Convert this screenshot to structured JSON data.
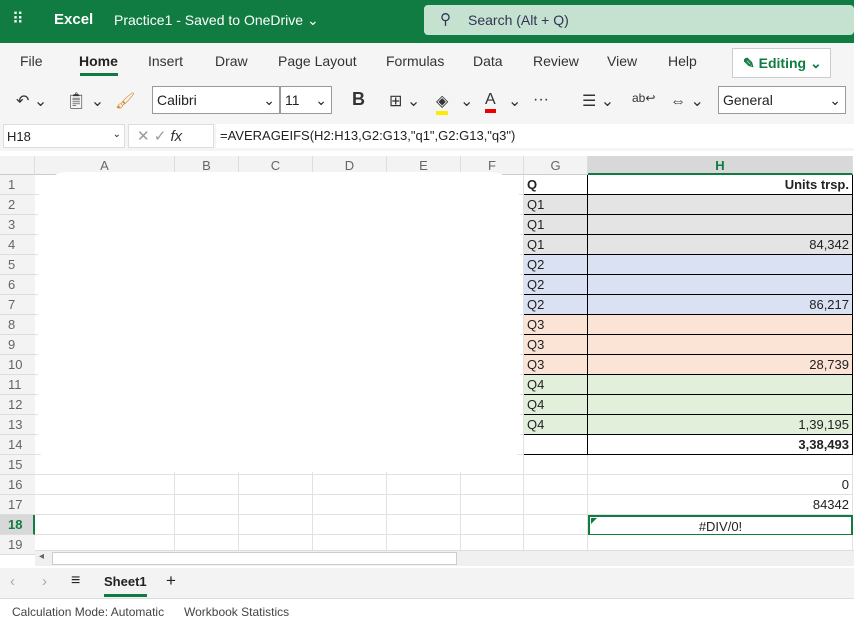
{
  "titlebar": {
    "app": "Excel",
    "document": "Practice1  -  Saved to OneDrive",
    "search_placeholder": "Search (Alt + Q)"
  },
  "menu": {
    "items": [
      "File",
      "Home",
      "Insert",
      "Draw",
      "Page Layout",
      "Formulas",
      "Data",
      "Review",
      "View",
      "Help"
    ],
    "active": "Home",
    "editing": "Editing"
  },
  "toolbar": {
    "font": "Calibri",
    "size": "11",
    "bold": "B",
    "number_format": "General",
    "more": "···"
  },
  "formula_bar": {
    "name_box": "H18",
    "fx": "fx",
    "formula": "=AVERAGEIFS(H2:H13,G2:G13,\"q1\",G2:G13,\"q3\")"
  },
  "columns": [
    "A",
    "B",
    "C",
    "D",
    "E",
    "F",
    "G",
    "H"
  ],
  "selected_column": "H",
  "selected_row": 18,
  "rows": [
    {
      "n": 1,
      "g": "Q",
      "h": "Units trsp.",
      "bold": true
    },
    {
      "n": 2,
      "g": "Q1",
      "h": "",
      "fill": "#e4e4e4"
    },
    {
      "n": 3,
      "g": "Q1",
      "h": "",
      "fill": "#e4e4e4"
    },
    {
      "n": 4,
      "g": "Q1",
      "h": "84,342",
      "fill": "#e4e4e4"
    },
    {
      "n": 5,
      "g": "Q2",
      "h": "",
      "fill": "#dae1f2"
    },
    {
      "n": 6,
      "g": "Q2",
      "h": "",
      "fill": "#dae1f2"
    },
    {
      "n": 7,
      "g": "Q2",
      "h": "86,217",
      "fill": "#dae1f2"
    },
    {
      "n": 8,
      "g": "Q3",
      "h": "",
      "fill": "#fbe3d6"
    },
    {
      "n": 9,
      "g": "Q3",
      "h": "",
      "fill": "#fbe3d6"
    },
    {
      "n": 10,
      "g": "Q3",
      "h": "28,739",
      "fill": "#fbe3d6"
    },
    {
      "n": 11,
      "g": "Q4",
      "h": "",
      "fill": "#e2efda"
    },
    {
      "n": 12,
      "g": "Q4",
      "h": "",
      "fill": "#e2efda"
    },
    {
      "n": 13,
      "g": "Q4",
      "h": "1,39,195",
      "fill": "#e2efda"
    },
    {
      "n": 14,
      "g": "",
      "h": "3,38,493",
      "bold": true
    },
    {
      "n": 15,
      "g": "",
      "h": ""
    },
    {
      "n": 16,
      "g": "",
      "h": "0"
    },
    {
      "n": 17,
      "g": "",
      "h": "84342"
    },
    {
      "n": 18,
      "g": "",
      "h": "#DIV/0!"
    },
    {
      "n": 19,
      "g": "",
      "h": ""
    }
  ],
  "sheets": {
    "tabs": [
      "Sheet1"
    ],
    "active": "Sheet1",
    "add": "+"
  },
  "status": {
    "calc_mode": "Calculation Mode: Automatic",
    "stats": "Workbook Statistics"
  },
  "colors": {
    "brand": "#107c41"
  }
}
